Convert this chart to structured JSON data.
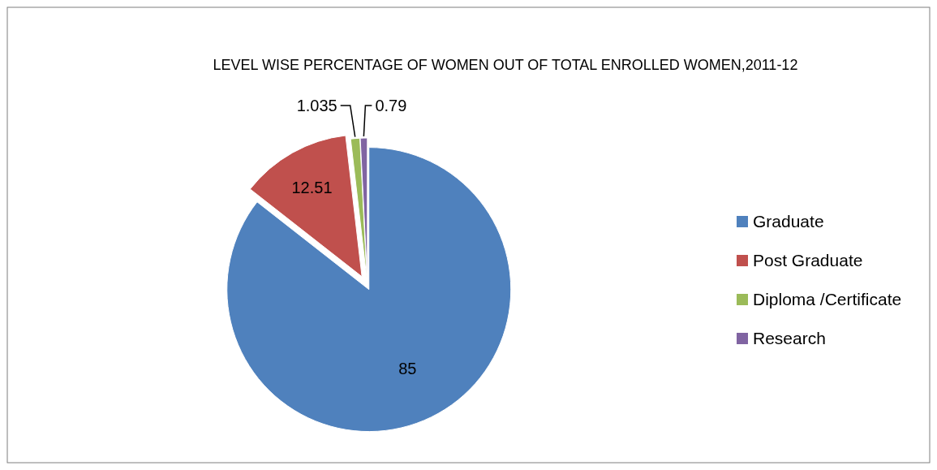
{
  "chart_data": {
    "type": "pie",
    "title": "LEVEL WISE PERCENTAGE OF WOMEN OUT OF TOTAL ENROLLED WOMEN,2011-12",
    "categories": [
      "Graduate",
      "Post Graduate",
      "Diploma /Certificate",
      "Research"
    ],
    "values": [
      85,
      12.51,
      1.035,
      0.79
    ],
    "colors": [
      "#4f81bd",
      "#c0504d",
      "#9bbb59",
      "#8064a2"
    ],
    "data_labels": true,
    "legend": "right"
  }
}
